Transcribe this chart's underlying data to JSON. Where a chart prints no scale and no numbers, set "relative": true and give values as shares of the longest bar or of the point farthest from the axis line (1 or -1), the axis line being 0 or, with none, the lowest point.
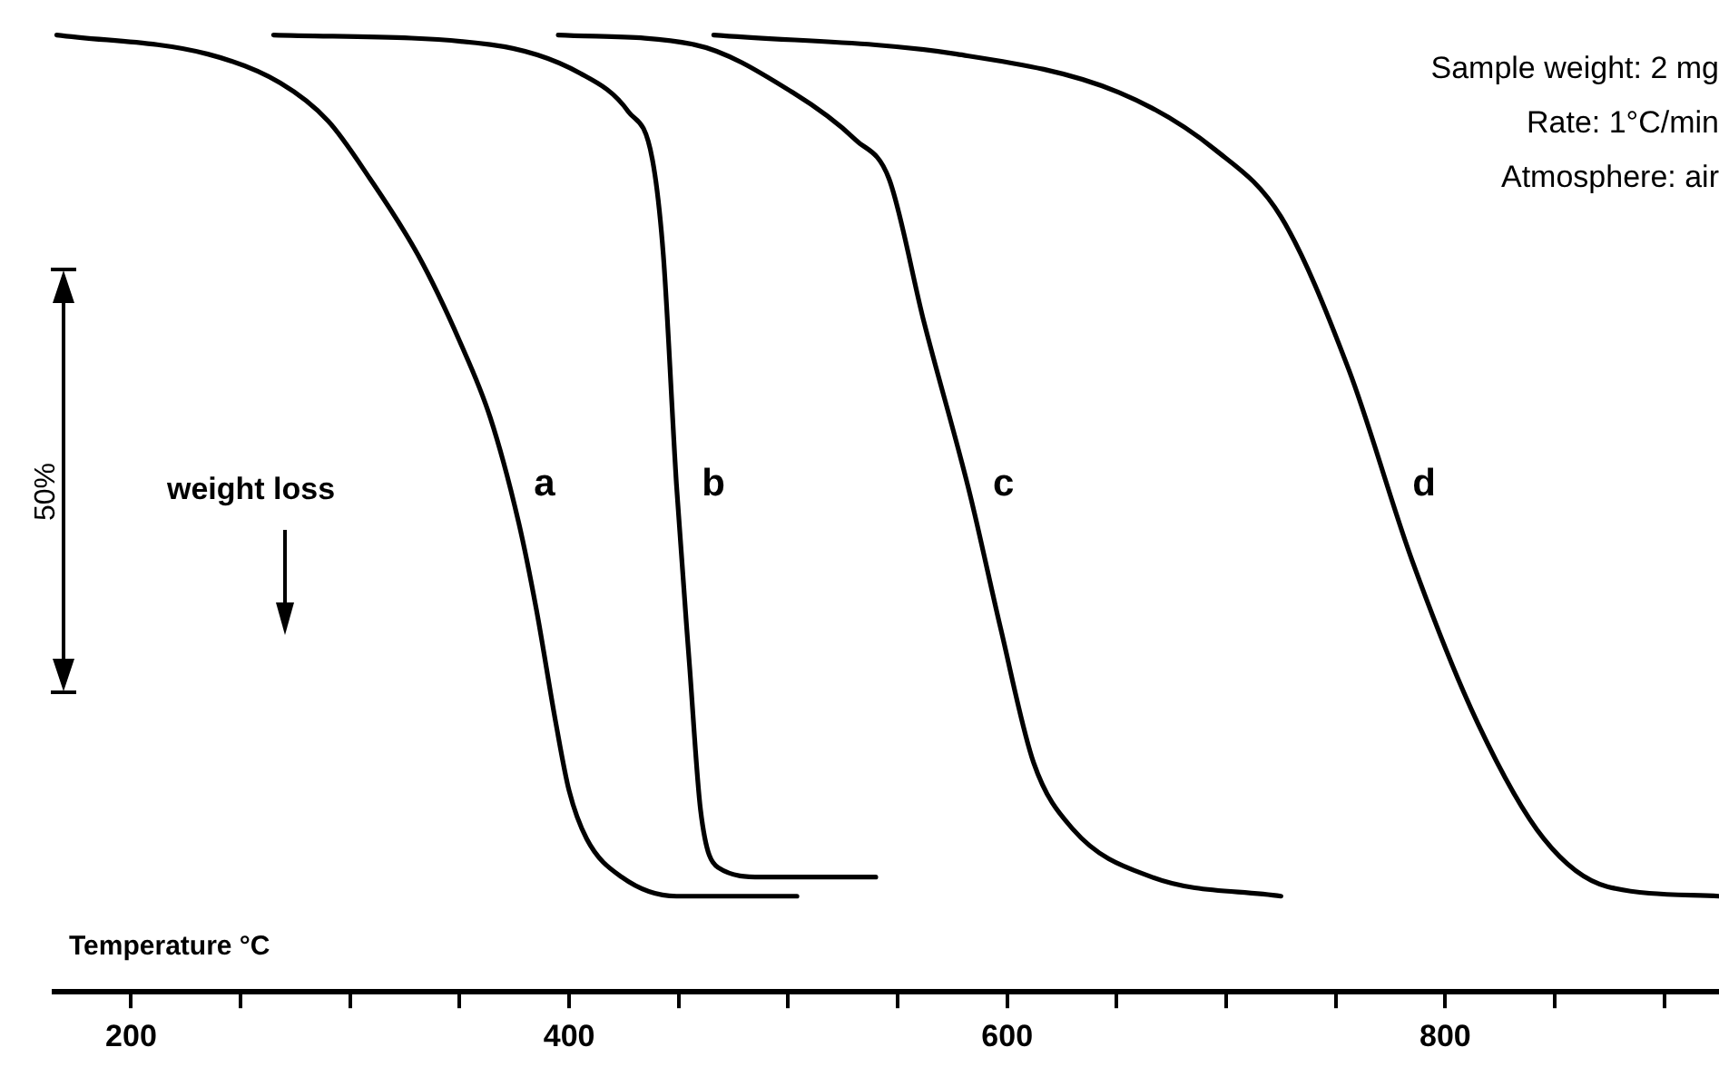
{
  "chart_data": {
    "type": "line",
    "relative": true,
    "xlabel": "Temperature °C",
    "xlim": [
      165,
      925
    ],
    "xticks": [
      200,
      {
        "value": 250,
        "label": null
      },
      {
        "value": 300,
        "label": null
      },
      {
        "value": 350,
        "label": null
      },
      400,
      {
        "value": 450,
        "label": null
      },
      {
        "value": 500,
        "label": null
      },
      {
        "value": 550,
        "label": null
      },
      600,
      {
        "value": 650,
        "label": null
      },
      {
        "value": 700,
        "label": null
      },
      {
        "value": 750,
        "label": null
      },
      800,
      {
        "value": 850,
        "label": null
      },
      {
        "value": 900,
        "label": null
      }
    ],
    "legend": false,
    "grid": false,
    "marker": "none",
    "line_style": "solid",
    "annotations": [
      "Sample weight:  2 mg",
      "Rate: 1°C/min",
      "Atmosphere: air",
      "weight loss",
      "50%"
    ],
    "series": [
      {
        "name": "a",
        "color": "#000000",
        "x": [
          166,
          235,
          268,
          290,
          309,
          331,
          350,
          364,
          377,
          385,
          394,
          400,
          408,
          424,
          449,
          504
        ],
        "values": [
          1.0,
          0.98,
          0.95,
          0.91,
          0.85,
          0.77,
          0.68,
          0.6,
          0.49,
          0.4,
          0.28,
          0.21,
          0.16,
          0.12,
          0.1,
          0.1
        ]
      },
      {
        "name": "b",
        "color": "#000000",
        "x": [
          265,
          364,
          405,
          427,
          438,
          443,
          449,
          455,
          460,
          468,
          488,
          540
        ],
        "values": [
          1.0,
          0.99,
          0.96,
          0.92,
          0.87,
          0.77,
          0.53,
          0.34,
          0.19,
          0.13,
          0.12,
          0.12
        ]
      },
      {
        "name": "c",
        "color": "#000000",
        "x": [
          395,
          457,
          502,
          531,
          546,
          562,
          583,
          597,
          612,
          630,
          666,
          725
        ],
        "values": [
          1.0,
          0.99,
          0.94,
          0.89,
          0.85,
          0.7,
          0.52,
          0.38,
          0.24,
          0.17,
          0.12,
          0.1
        ]
      },
      {
        "name": "d",
        "color": "#000000",
        "x": [
          466,
          577,
          651,
          695,
          725,
          756,
          785,
          815,
          845,
          874,
          925
        ],
        "values": [
          1.0,
          0.98,
          0.94,
          0.88,
          0.81,
          0.65,
          0.45,
          0.28,
          0.16,
          0.11,
          0.1
        ]
      }
    ]
  }
}
